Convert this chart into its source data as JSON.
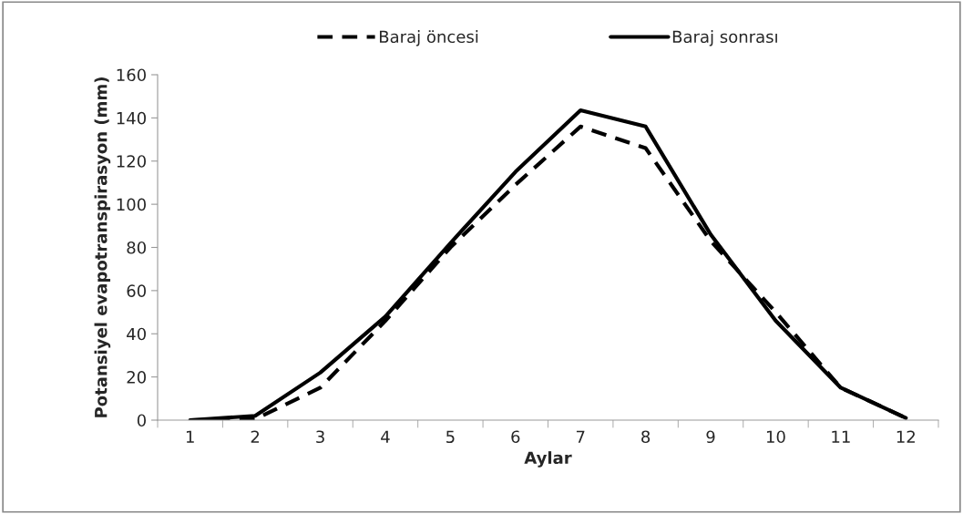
{
  "chart_data": {
    "type": "line",
    "categories": [
      "1",
      "2",
      "3",
      "4",
      "5",
      "6",
      "7",
      "8",
      "9",
      "10",
      "11",
      "12"
    ],
    "series": [
      {
        "name": "Baraj öncesi",
        "color": "#000000",
        "line_style": "dashed",
        "values": [
          0,
          0.5,
          15,
          46,
          80,
          109,
          136,
          126,
          83,
          50,
          15,
          1
        ]
      },
      {
        "name": "Baraj sonrası",
        "color": "#000000",
        "line_style": "solid",
        "values": [
          0,
          2,
          22,
          48,
          82,
          115,
          143.5,
          136,
          86,
          46,
          15,
          1
        ]
      }
    ],
    "xlabel": "Aylar",
    "ylabel": "Potansiyel evapotranspirasyon (mm)",
    "ylim": [
      0,
      160
    ],
    "yticks": [
      0,
      20,
      40,
      60,
      80,
      100,
      120,
      140,
      160
    ],
    "grid": false,
    "legend": "top",
    "marker": "none"
  }
}
